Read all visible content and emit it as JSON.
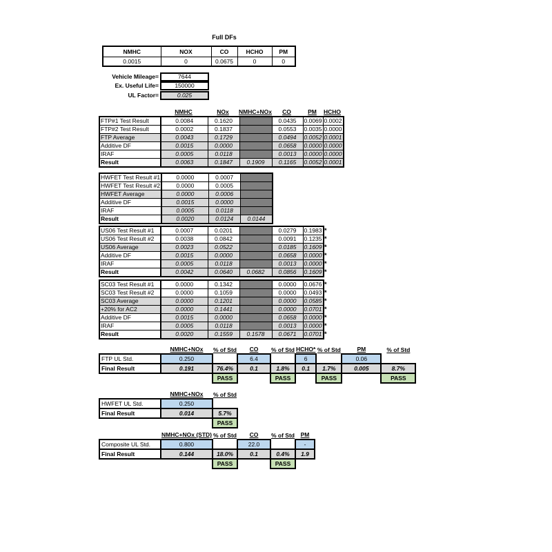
{
  "colors": {
    "dark_fill": "#7f7f7f",
    "calc_fill": "#d9d9d9",
    "std_fill": "#bdd7ee",
    "pass_fill": "#c6e0b4",
    "border": "#000000"
  },
  "full_dfs": {
    "title": "Full DFs",
    "headers": [
      "NMHC",
      "NOX",
      "CO",
      "HCHO",
      "PM"
    ],
    "values": [
      "0.0015",
      "0",
      "0.0675",
      "0",
      "0"
    ]
  },
  "vehicle_info": [
    {
      "label": "Vehicle Mileage=",
      "value": "7644",
      "calc": false
    },
    {
      "label": "Ex. Useful Life=",
      "value": "150000",
      "calc": false
    },
    {
      "label": "UL Factor=",
      "value": "0.025",
      "calc": true
    }
  ],
  "main_table": {
    "column_headers": [
      "NMHC",
      "NOx",
      "NMHC+NOx",
      "CO",
      "PM",
      "HCHO"
    ],
    "asterisk_marker": "*",
    "blocks": [
      {
        "id": "ftp",
        "asterisks": false,
        "rows": [
          {
            "label": "FTP#1 Test Result",
            "type": "input",
            "values": [
              "0.0084",
              "0.1620",
              null,
              "0.0435",
              "0.0069",
              "0.0002"
            ]
          },
          {
            "label": "FTP#2 Test Result",
            "type": "input",
            "values": [
              "0.0002",
              "0.1837",
              null,
              "0.0553",
              "0.0035",
              "0.0000"
            ]
          },
          {
            "label": "FTP Average",
            "type": "avg",
            "values": [
              "0.0043",
              "0.1729",
              null,
              "0.0494",
              "0.0052",
              "0.0001"
            ]
          },
          {
            "label": "Additive DF",
            "type": "calc",
            "values": [
              "0.0015",
              "0.0000",
              null,
              "0.0658",
              "0.0000",
              "0.0000"
            ]
          },
          {
            "label": "IRAF",
            "type": "calc",
            "values": [
              "0.0005",
              "0.0118",
              null,
              "0.0013",
              "0.0000",
              "0.0000"
            ]
          },
          {
            "label": "Result",
            "type": "result",
            "values": [
              "0.0063",
              "0.1847",
              "0.1909",
              "0.1165",
              "0.0052",
              "0.0001"
            ]
          }
        ]
      },
      {
        "id": "hwfet",
        "asterisks": false,
        "rows": [
          {
            "label": "HWFET Test Result #1",
            "type": "input",
            "values": [
              "0.0000",
              "0.0007",
              null
            ]
          },
          {
            "label": "HWFET Test Result #2",
            "type": "input",
            "values": [
              "0.0000",
              "0.0005",
              null
            ]
          },
          {
            "label": "HWFET Average",
            "type": "avg",
            "values": [
              "0.0000",
              "0.0006",
              null
            ]
          },
          {
            "label": "Additive DF",
            "type": "calc",
            "values": [
              "0.0015",
              "0.0000",
              null
            ]
          },
          {
            "label": "IRAF",
            "type": "calc",
            "values": [
              "0.0005",
              "0.0118",
              null
            ]
          },
          {
            "label": "Result",
            "type": "result",
            "values": [
              "0.0020",
              "0.0124",
              "0.0144"
            ]
          }
        ]
      },
      {
        "id": "us06",
        "asterisks": true,
        "rows": [
          {
            "label": "US06 Test Result #1",
            "type": "input",
            "values": [
              "0.0007",
              "0.0201",
              null,
              "0.0279",
              "0.1983"
            ]
          },
          {
            "label": "US06 Test Result #2",
            "type": "input",
            "values": [
              "0.0038",
              "0.0842",
              null,
              "0.0091",
              "0.1235"
            ]
          },
          {
            "label": "US06 Average",
            "type": "avg",
            "values": [
              "0.0023",
              "0.0522",
              null,
              "0.0185",
              "0.1609"
            ]
          },
          {
            "label": "Additive DF",
            "type": "calc",
            "values": [
              "0.0015",
              "0.0000",
              null,
              "0.0658",
              "0.0000"
            ]
          },
          {
            "label": "IRAF",
            "type": "calc",
            "values": [
              "0.0005",
              "0.0118",
              null,
              "0.0013",
              "0.0000"
            ]
          },
          {
            "label": "Result",
            "type": "result",
            "values": [
              "0.0042",
              "0.0640",
              "0.0682",
              "0.0856",
              "0.1609"
            ]
          }
        ]
      },
      {
        "id": "sc03",
        "asterisks": true,
        "rows": [
          {
            "label": "SC03 Test Result #1",
            "type": "input",
            "values": [
              "0.0000",
              "0.1342",
              null,
              "0.0000",
              "0.0676"
            ]
          },
          {
            "label": "SC03 Test Result #2",
            "type": "input",
            "values": [
              "0.0000",
              "0.1059",
              null,
              "0.0000",
              "0.0493"
            ]
          },
          {
            "label": "SC03 Average",
            "type": "avg",
            "values": [
              "0.0000",
              "0.1201",
              null,
              "0.0000",
              "0.0585"
            ]
          },
          {
            "label": "+20% for AC2",
            "type": "avg",
            "values": [
              "0.0000",
              "0.1441",
              null,
              "0.0000",
              "0.0701"
            ]
          },
          {
            "label": "Additive DF",
            "type": "calc",
            "values": [
              "0.0015",
              "0.0000",
              null,
              "0.0658",
              "0.0000"
            ]
          },
          {
            "label": "IRAF",
            "type": "calc",
            "values": [
              "0.0005",
              "0.0118",
              null,
              "0.0013",
              "0.0000"
            ]
          },
          {
            "label": "Result",
            "type": "result",
            "values": [
              "0.0020",
              "0.1559",
              "0.1578",
              "0.0671",
              "0.0701"
            ]
          }
        ]
      }
    ]
  },
  "summary_tables": [
    {
      "id": "ftp-ul",
      "headers": [
        "NMHC+NOx",
        "% of Std",
        "CO",
        "% of Std",
        "HCHO*",
        "% of Std",
        "PM",
        "% of Std"
      ],
      "std_label": "FTP UL Std.",
      "std_values": [
        "0.250",
        null,
        "6.4",
        null,
        "6",
        null,
        "0.06",
        null
      ],
      "final_label": "Final Result",
      "final_values": [
        "0.191",
        "76.4%",
        "0.1",
        "1.8%",
        "0.1",
        "1.7%",
        "0.005",
        "8.7%"
      ],
      "pass_label": "PASS",
      "pass_cols": [
        1,
        3,
        5,
        7
      ]
    },
    {
      "id": "hwfet-ul",
      "headers": [
        "NMHC+NOx",
        "% of Std"
      ],
      "std_label": "HWFET UL Std.",
      "std_values": [
        "0.250",
        null
      ],
      "final_label": "Final Result",
      "final_values": [
        "0.014",
        "5.7%"
      ],
      "pass_label": "PASS",
      "pass_cols": [
        1
      ]
    },
    {
      "id": "composite-ul",
      "headers": [
        "NMHC+NOx (STD)",
        "% of Std",
        "CO",
        "% of Std",
        "PM"
      ],
      "std_label": "Composite UL Std.",
      "std_values": [
        "0.800",
        null,
        "22.0",
        null,
        "-"
      ],
      "final_label": "Final Result",
      "final_values": [
        "0.144",
        "18.0%",
        "0.1",
        "0.4%",
        "1.9"
      ],
      "pass_label": "PASS",
      "pass_cols": [
        1,
        3
      ]
    }
  ]
}
